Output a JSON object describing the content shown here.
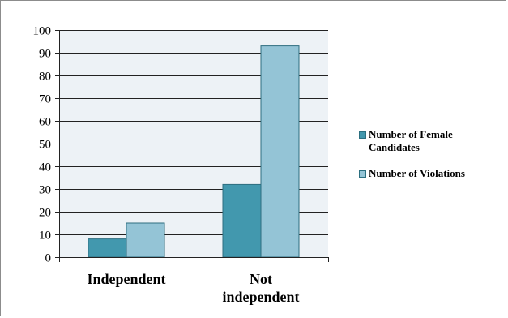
{
  "chart_data": {
    "type": "bar",
    "title": "",
    "xlabel": "",
    "ylabel": "",
    "categories": [
      "Independent",
      "Not independent"
    ],
    "series": [
      {
        "name": "Number of Female Candidates",
        "values": [
          8,
          32
        ],
        "color": "#4298ae"
      },
      {
        "name": "Number of Violations",
        "values": [
          15,
          93
        ],
        "color": "#94c4d6"
      }
    ],
    "ylim": [
      0,
      100
    ],
    "yticks": [
      0,
      10,
      20,
      30,
      40,
      50,
      60,
      70,
      80,
      90,
      100
    ],
    "grid": true,
    "legend": "right",
    "plot_background": "#edf2f6",
    "gridline_color": "#222222"
  }
}
